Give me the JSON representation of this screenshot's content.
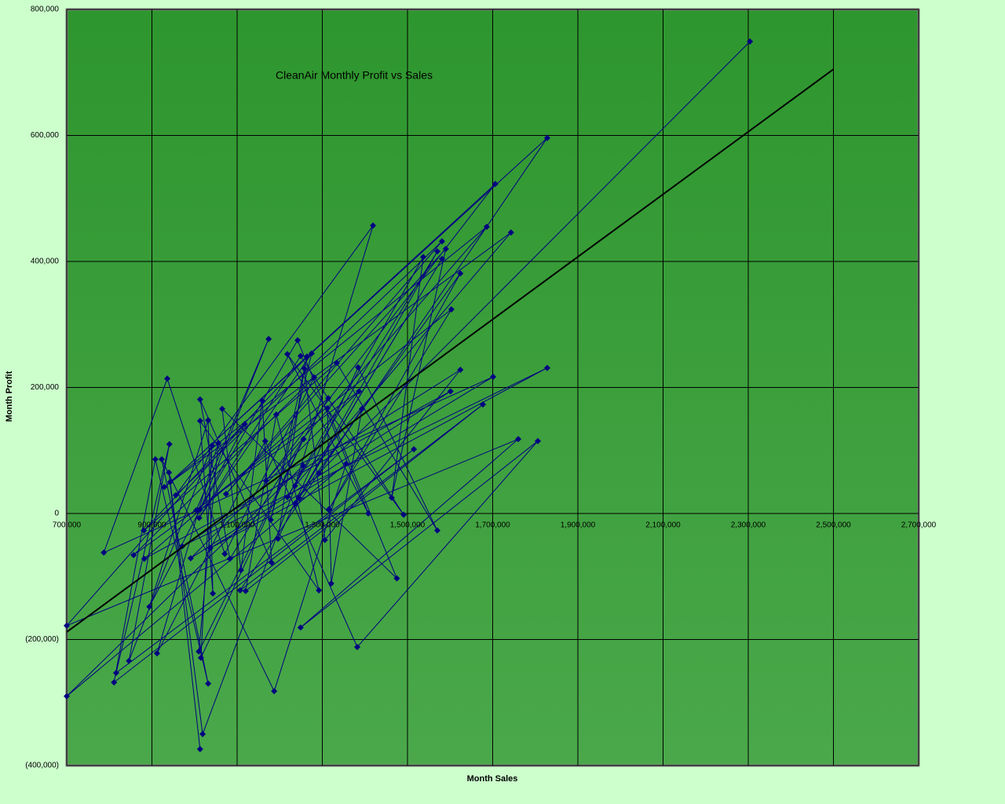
{
  "chart_data": {
    "type": "scatter",
    "title": "CleanAir Monthly Profit vs Sales",
    "x_label": "Month Sales",
    "y_label": "Month Profit",
    "xlim": [
      700000,
      2700000
    ],
    "ylim": [
      -400000,
      800000
    ],
    "xticks": [
      {
        "value": 700000,
        "label": "700,000"
      },
      {
        "value": 900000,
        "label": "900,000"
      },
      {
        "value": 1100000,
        "label": "1,100,000"
      },
      {
        "value": 1300000,
        "label": "1,300,000"
      },
      {
        "value": 1500000,
        "label": "1,500,000"
      },
      {
        "value": 1700000,
        "label": "1,700,000"
      },
      {
        "value": 1900000,
        "label": "1,900,000"
      },
      {
        "value": 2100000,
        "label": "2,100,000"
      },
      {
        "value": 2300000,
        "label": "2,300,000"
      },
      {
        "value": 2500000,
        "label": "2,500,000"
      },
      {
        "value": 2700000,
        "label": "2,700,000"
      }
    ],
    "yticks": [
      {
        "value": -400000,
        "label": "(400,000)"
      },
      {
        "value": -200000,
        "label": "(200,000)"
      },
      {
        "value": 0,
        "label": "0"
      },
      {
        "value": 200000,
        "label": "200,000"
      },
      {
        "value": 400000,
        "label": "400,000"
      },
      {
        "value": 600000,
        "label": "600,000"
      },
      {
        "value": 800000,
        "label": "800,000"
      }
    ],
    "negative_tick_color": "#cc0000",
    "grid": true,
    "plot_background": [
      "#2e962e",
      "#4aa84a"
    ],
    "series": [
      {
        "color": "#000080",
        "line": true,
        "marker": "diamond",
        "x": [
          2304000,
          1292000,
          1828000,
          943000,
          1706000,
          1168000,
          1686000,
          929000,
          1743000,
          1236000,
          1419000,
          956000,
          1581000,
          1074000,
          1590000,
          1463000,
          1537000,
          1218000,
          1570000,
          1245000,
          1581000,
          1236000,
          1624000,
          1316000,
          1603000,
          1004000,
          1174000,
          1013000,
          1242000,
          1408000,
          1218000,
          1491000,
          1249000,
          1011000,
          1275000,
          1179000,
          1264000,
          881000,
          1334000,
          1570000,
          1384000,
          1196000,
          1258000,
          1306000,
          1624000,
          971000,
          1828000,
          1037000,
          1701000,
          787000,
          936000,
          1071000,
          1281000,
          857000,
          1386000,
          991000,
          1601000,
          882000,
          1314000,
          1083000,
          1013000,
          1181000,
          1159000,
          1109000,
          1065000,
          1475000,
          1312000,
          1321000,
          1393000,
          1107000,
          1677000,
          1120000,
          1192000,
          1292000,
          1013000,
          1043000,
          1032000,
          894000,
          1118000,
          700000,
          1760000,
          1249000,
          1806000,
          1382000,
          1166000,
          912000,
          1056000,
          1010000,
          1256000,
          1015000,
          1041000,
          846000,
          941000,
          816000,
          1515000,
          811000,
          908000,
          1032000,
          923000,
          1187000,
          1356000,
          700000,
          1255000,
          1019000,
          940000,
          1013000
        ],
        "values": [
          749000,
          64000,
          596000,
          50000,
          523000,
          52000,
          455000,
          42000,
          446000,
          44000,
          457000,
          29000,
          432000,
          31000,
          420000,
          25000,
          407000,
          26000,
          416000,
          25000,
          404000,
          16000,
          381000,
          7000,
          324000,
          5000,
          277000,
          6000,
          275000,
          0,
          253000,
          -2000,
          250000,
          -7000,
          254000,
          -10000,
          249000,
          -27000,
          239000,
          -27000,
          232000,
          -40000,
          230000,
          -42000,
          228000,
          -52000,
          231000,
          -55000,
          217000,
          -62000,
          214000,
          -64000,
          216000,
          -66000,
          194000,
          -71000,
          194000,
          -72000,
          183000,
          -72000,
          181000,
          -78000,
          179000,
          -90000,
          166000,
          -103000,
          167000,
          -111000,
          166000,
          -122000,
          173000,
          -123000,
          157000,
          -122000,
          147000,
          -127000,
          148000,
          -148000,
          142000,
          -178000,
          118000,
          -181000,
          115000,
          -212000,
          115000,
          -222000,
          112000,
          -219000,
          118000,
          -229000,
          108000,
          -234000,
          110000,
          -253000,
          102000,
          -268000,
          86000,
          -270000,
          86000,
          -282000,
          79000,
          -290000,
          76000,
          -350000,
          65000,
          -374000
        ]
      },
      {
        "color": "#000000",
        "line": true,
        "marker": "none",
        "x": [
          700000,
          2500000
        ],
        "values": [
          -188000,
          705000
        ]
      }
    ]
  }
}
